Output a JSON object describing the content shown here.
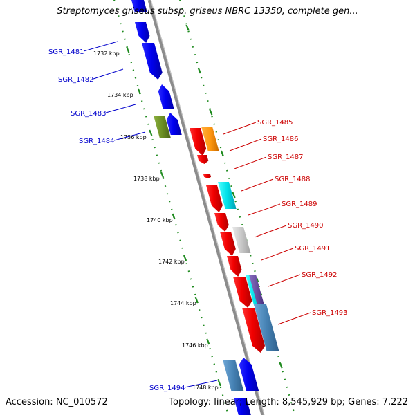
{
  "title": "Streptomyces griseus subsp. griseus NBRC 13350, complete gen...",
  "footer": {
    "accession": "Accession: NC_010572",
    "summary": "Topology: linear; Length: 8,545,929 bp; Genes: 7,222"
  },
  "colors": {
    "backbone": "#8c8c8c",
    "tick": "#1e8a1e",
    "left_label": "#0000cc",
    "right_label": "#cc0000"
  },
  "kbp_ticks": [
    "1732 kbp",
    "1734 kbp",
    "1736 kbp",
    "1738 kbp",
    "1740 kbp",
    "1742 kbp",
    "1744 kbp",
    "1746 kbp",
    "1748 kbp"
  ],
  "left_genes": [
    {
      "id": "SGR_1481"
    },
    {
      "id": "SGR_1482"
    },
    {
      "id": "SGR_1483"
    },
    {
      "id": "SGR_1484"
    },
    {
      "id": "SGR_1494"
    }
  ],
  "right_genes": [
    {
      "id": "SGR_1485"
    },
    {
      "id": "SGR_1486"
    },
    {
      "id": "SGR_1487"
    },
    {
      "id": "SGR_1488"
    },
    {
      "id": "SGR_1489"
    },
    {
      "id": "SGR_1490"
    },
    {
      "id": "SGR_1491"
    },
    {
      "id": "SGR_1492"
    },
    {
      "id": "SGR_1493"
    }
  ]
}
